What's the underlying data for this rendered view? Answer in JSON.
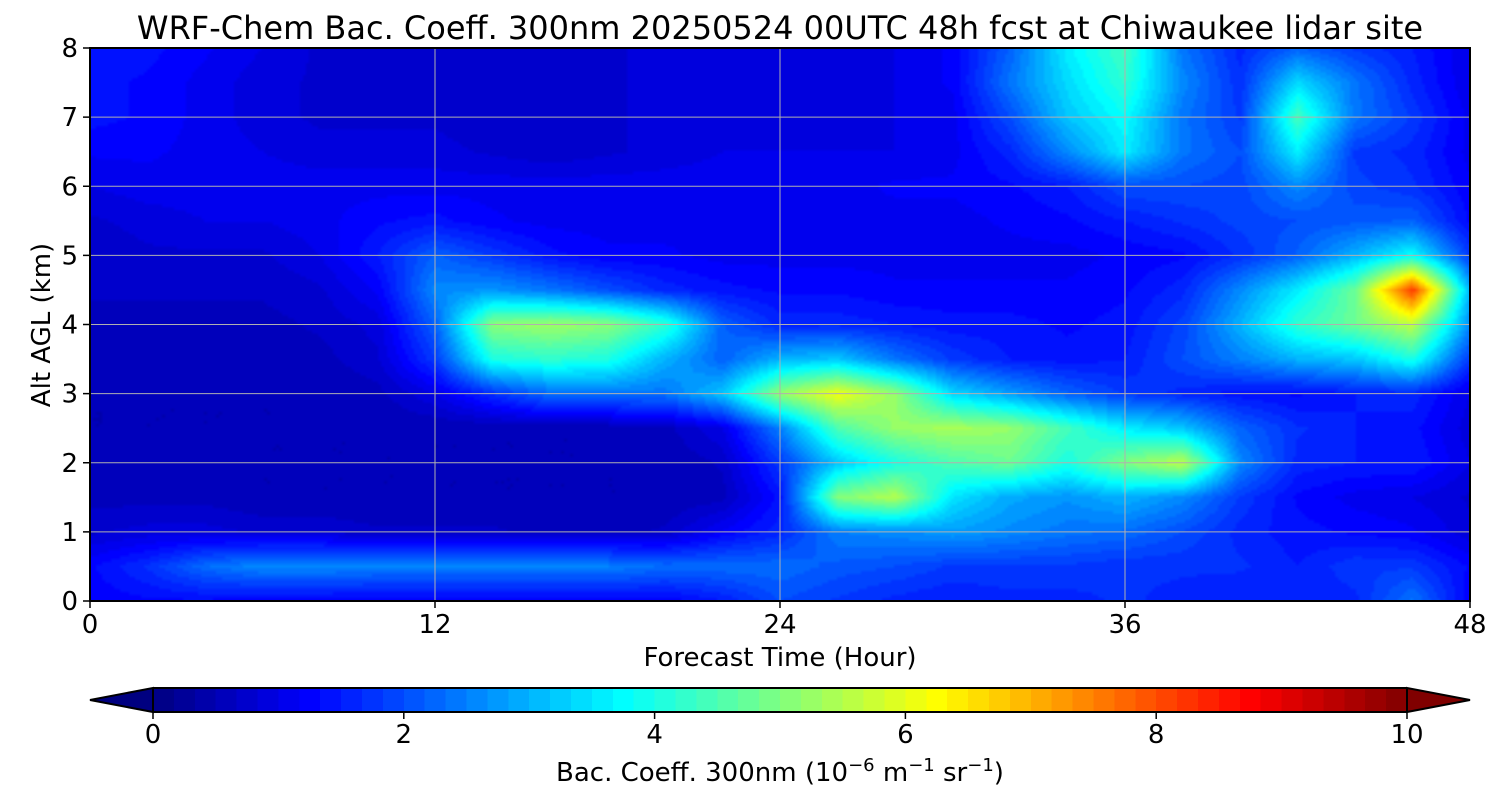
{
  "chart_data": {
    "type": "heatmap",
    "title": "WRF-Chem Bac. Coeff. 300nm  20250524 00UTC 48h fcst at Chiwaukee lidar site",
    "xlabel": "Forecast Time (Hour)",
    "ylabel": "Alt AGL (km)",
    "xlim": [
      0,
      48
    ],
    "ylim": [
      0,
      8
    ],
    "xticks": [
      "0",
      "12",
      "24",
      "36",
      "48"
    ],
    "yticks": [
      "0",
      "1",
      "2",
      "3",
      "4",
      "5",
      "6",
      "7",
      "8"
    ],
    "grid": true,
    "colorscale": "jet",
    "colorbar": {
      "label": "Bac. Coeff. 300nm  (10",
      "label_units": "−6 m−1 sr−1",
      "label_base": "Bac. Coeff. 300nm  (10",
      "label_exp1": "−6",
      "label_mid1": " m",
      "label_exp2": "−1",
      "label_mid2": " sr",
      "label_exp3": "−1",
      "label_end": ")",
      "range": [
        0,
        10
      ],
      "ticks": [
        "0",
        "2",
        "4",
        "6",
        "8",
        "10"
      ],
      "extend": "both"
    },
    "x": [
      0,
      2,
      4,
      6,
      8,
      10,
      12,
      14,
      16,
      18,
      20,
      22,
      24,
      26,
      28,
      30,
      32,
      34,
      36,
      38,
      40,
      42,
      44,
      46,
      48
    ],
    "y": [
      0,
      0.5,
      1,
      1.5,
      2,
      2.5,
      3,
      3.5,
      4,
      4.5,
      5,
      5.5,
      6,
      6.5,
      7,
      7.5,
      8
    ],
    "z": [
      [
        1.2,
        1.3,
        1.3,
        1.2,
        1.2,
        1.2,
        1.2,
        1.2,
        1.2,
        1.2,
        1.2,
        1.5,
        2.0,
        1.8,
        1.6,
        1.5,
        1.6,
        1.6,
        1.7,
        1.6,
        1.5,
        1.5,
        1.6,
        2.4,
        1.2
      ],
      [
        1.3,
        1.7,
        2.3,
        2.6,
        2.6,
        2.5,
        2.5,
        2.5,
        2.5,
        2.5,
        2.3,
        2.3,
        2.3,
        2.1,
        2.0,
        1.8,
        1.8,
        1.8,
        1.7,
        1.7,
        1.7,
        1.5,
        1.8,
        1.8,
        1.3
      ],
      [
        0.8,
        0.9,
        0.9,
        0.8,
        0.8,
        0.7,
        0.7,
        0.7,
        0.6,
        0.6,
        0.7,
        1.2,
        1.6,
        2.5,
        2.6,
        2.8,
        2.6,
        2.4,
        2.3,
        2.0,
        1.6,
        1.4,
        1.3,
        1.2,
        0.9
      ],
      [
        0.6,
        0.6,
        0.6,
        0.5,
        0.5,
        0.5,
        0.5,
        0.5,
        0.5,
        0.5,
        0.5,
        0.6,
        1.4,
        5.0,
        5.5,
        3.5,
        2.9,
        2.7,
        3.0,
        2.6,
        1.8,
        1.3,
        1.1,
        1.0,
        0.8
      ],
      [
        0.6,
        0.6,
        0.6,
        0.5,
        0.5,
        0.5,
        0.5,
        0.5,
        0.5,
        0.5,
        0.5,
        0.7,
        1.8,
        3.2,
        4.0,
        4.5,
        4.8,
        4.0,
        5.0,
        5.6,
        2.6,
        1.6,
        1.5,
        1.5,
        1.0
      ],
      [
        0.5,
        0.5,
        0.5,
        0.5,
        0.5,
        0.5,
        0.5,
        0.5,
        0.5,
        0.5,
        0.6,
        1.0,
        2.5,
        4.5,
        5.2,
        5.4,
        5.2,
        4.4,
        3.6,
        3.2,
        2.2,
        1.7,
        1.5,
        1.4,
        0.9
      ],
      [
        0.5,
        0.5,
        0.5,
        0.5,
        0.5,
        0.6,
        1.0,
        1.7,
        2.3,
        2.4,
        2.4,
        3.2,
        5.2,
        6.1,
        5.2,
        3.4,
        2.8,
        2.2,
        1.8,
        1.6,
        1.4,
        1.3,
        1.5,
        1.6,
        1.0
      ],
      [
        0.6,
        0.6,
        0.6,
        0.6,
        0.6,
        0.8,
        1.8,
        4.0,
        4.2,
        4.0,
        3.0,
        2.2,
        3.0,
        3.2,
        2.4,
        1.8,
        1.5,
        1.4,
        1.5,
        2.0,
        2.5,
        3.0,
        3.2,
        4.0,
        1.8
      ],
      [
        0.6,
        0.6,
        0.6,
        0.6,
        0.7,
        0.9,
        2.2,
        5.1,
        5.3,
        5.1,
        4.2,
        2.2,
        1.6,
        1.6,
        1.5,
        1.4,
        1.4,
        1.3,
        1.4,
        1.9,
        3.0,
        4.2,
        4.8,
        5.6,
        2.6
      ],
      [
        0.7,
        0.7,
        0.7,
        0.7,
        0.8,
        1.2,
        2.6,
        2.7,
        2.4,
        2.0,
        1.6,
        1.4,
        1.3,
        1.3,
        1.2,
        1.2,
        1.2,
        1.2,
        1.3,
        1.6,
        2.6,
        3.6,
        4.8,
        8.2,
        3.0
      ],
      [
        0.7,
        0.8,
        0.8,
        0.8,
        1.0,
        1.5,
        2.2,
        1.8,
        1.4,
        1.2,
        1.2,
        1.1,
        1.1,
        1.1,
        1.1,
        1.1,
        1.1,
        1.1,
        1.2,
        1.3,
        1.7,
        2.2,
        3.0,
        3.8,
        1.8
      ],
      [
        0.8,
        0.9,
        1.0,
        1.0,
        1.1,
        1.3,
        1.4,
        1.2,
        1.1,
        1.1,
        1.1,
        1.1,
        1.1,
        1.1,
        1.1,
        1.1,
        1.2,
        1.3,
        1.5,
        1.7,
        1.9,
        2.0,
        2.1,
        2.2,
        1.3
      ],
      [
        1.0,
        1.1,
        1.1,
        1.1,
        1.1,
        1.1,
        1.1,
        1.1,
        1.1,
        1.1,
        1.1,
        1.1,
        1.1,
        1.1,
        1.2,
        1.2,
        1.3,
        1.5,
        2.0,
        2.0,
        1.9,
        2.6,
        1.9,
        1.7,
        1.2
      ],
      [
        1.2,
        1.2,
        1.1,
        1.0,
        0.9,
        0.9,
        0.9,
        0.8,
        0.7,
        0.8,
        0.9,
        1.0,
        1.0,
        1.0,
        1.0,
        1.1,
        1.6,
        2.6,
        3.6,
        2.4,
        2.0,
        3.6,
        1.8,
        1.6,
        1.1
      ],
      [
        1.4,
        1.3,
        1.1,
        0.9,
        0.8,
        0.8,
        0.8,
        0.7,
        0.7,
        0.8,
        0.9,
        0.9,
        0.9,
        0.9,
        1.0,
        1.1,
        2.0,
        3.2,
        3.8,
        2.4,
        1.8,
        4.4,
        2.4,
        1.8,
        1.1
      ],
      [
        1.4,
        1.3,
        1.1,
        0.9,
        0.8,
        0.7,
        0.7,
        0.7,
        0.7,
        0.8,
        0.9,
        0.9,
        0.9,
        0.9,
        1.0,
        1.2,
        2.4,
        3.4,
        4.2,
        2.6,
        1.7,
        3.4,
        2.4,
        1.6,
        1.0
      ],
      [
        1.5,
        1.4,
        1.2,
        1.0,
        0.8,
        0.7,
        0.7,
        0.7,
        0.7,
        0.8,
        0.9,
        0.9,
        0.9,
        0.9,
        1.0,
        1.2,
        2.2,
        3.6,
        4.4,
        2.4,
        1.6,
        2.2,
        1.8,
        1.5,
        1.0
      ]
    ]
  }
}
